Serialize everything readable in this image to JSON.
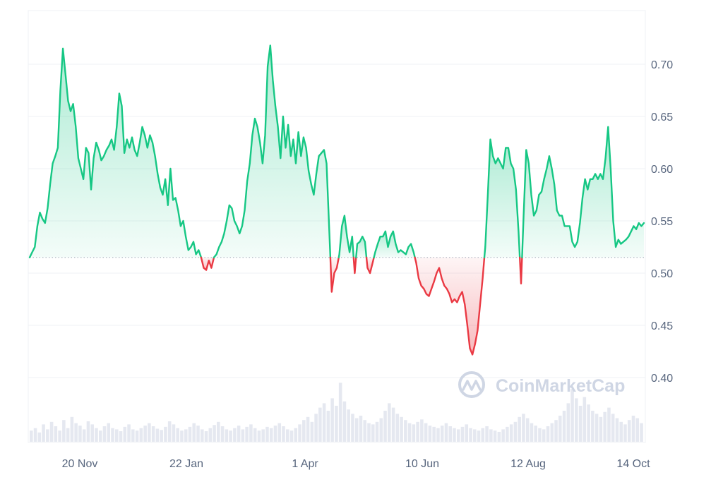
{
  "chart_data": {
    "type": "area",
    "title": "",
    "xlabel": "",
    "ylabel": "",
    "baseline": 0.515,
    "ylim": [
      0.35,
      0.75
    ],
    "x_ticks": [
      "20 Nov",
      "22 Jan",
      "1 Apr",
      "10 Jun",
      "12 Aug",
      "14 Oct"
    ],
    "y_ticks": [
      "0.70",
      "0.65",
      "0.60",
      "0.55",
      "0.50",
      "0.45",
      "0.40"
    ],
    "grid": true,
    "colors": {
      "up": "#16c784",
      "down": "#ea3943",
      "grid": "#eff2f5",
      "baseline": "#aab1bd",
      "volume": "#cfd6e4"
    },
    "series": [
      {
        "values": [
          0.515,
          0.52,
          0.525,
          0.545,
          0.558,
          0.552,
          0.548,
          0.562,
          0.585,
          0.605,
          0.612,
          0.62,
          0.675,
          0.715,
          0.69,
          0.665,
          0.655,
          0.662,
          0.64,
          0.61,
          0.6,
          0.59,
          0.62,
          0.615,
          0.58,
          0.61,
          0.625,
          0.618,
          0.608,
          0.612,
          0.618,
          0.622,
          0.628,
          0.618,
          0.64,
          0.672,
          0.66,
          0.615,
          0.628,
          0.62,
          0.63,
          0.618,
          0.612,
          0.625,
          0.64,
          0.632,
          0.62,
          0.632,
          0.625,
          0.612,
          0.595,
          0.582,
          0.575,
          0.59,
          0.565,
          0.6,
          0.57,
          0.572,
          0.56,
          0.545,
          0.55,
          0.535,
          0.522,
          0.525,
          0.53,
          0.518,
          0.522,
          0.515,
          0.505,
          0.503,
          0.512,
          0.505,
          0.515,
          0.518,
          0.525,
          0.53,
          0.538,
          0.55,
          0.565,
          0.562,
          0.55,
          0.545,
          0.538,
          0.545,
          0.56,
          0.588,
          0.605,
          0.632,
          0.648,
          0.64,
          0.625,
          0.605,
          0.632,
          0.698,
          0.718,
          0.685,
          0.66,
          0.64,
          0.61,
          0.65,
          0.62,
          0.642,
          0.612,
          0.628,
          0.605,
          0.635,
          0.612,
          0.63,
          0.62,
          0.598,
          0.585,
          0.575,
          0.595,
          0.612,
          0.615,
          0.618,
          0.605,
          0.545,
          0.482,
          0.5,
          0.505,
          0.518,
          0.545,
          0.555,
          0.535,
          0.52,
          0.535,
          0.5,
          0.528,
          0.53,
          0.535,
          0.53,
          0.505,
          0.5,
          0.51,
          0.52,
          0.528,
          0.535,
          0.535,
          0.54,
          0.525,
          0.535,
          0.54,
          0.528,
          0.52,
          0.522,
          0.52,
          0.518,
          0.525,
          0.528,
          0.52,
          0.51,
          0.495,
          0.488,
          0.485,
          0.48,
          0.478,
          0.485,
          0.492,
          0.5,
          0.505,
          0.495,
          0.488,
          0.485,
          0.48,
          0.472,
          0.475,
          0.472,
          0.478,
          0.482,
          0.47,
          0.45,
          0.428,
          0.422,
          0.432,
          0.445,
          0.47,
          0.495,
          0.525,
          0.575,
          0.628,
          0.612,
          0.605,
          0.61,
          0.605,
          0.6,
          0.62,
          0.62,
          0.605,
          0.6,
          0.58,
          0.54,
          0.49,
          0.555,
          0.618,
          0.605,
          0.575,
          0.555,
          0.56,
          0.575,
          0.578,
          0.59,
          0.6,
          0.612,
          0.6,
          0.585,
          0.56,
          0.555,
          0.555,
          0.545,
          0.545,
          0.545,
          0.53,
          0.525,
          0.53,
          0.548,
          0.572,
          0.59,
          0.58,
          0.59,
          0.59,
          0.595,
          0.59,
          0.595,
          0.59,
          0.61,
          0.64,
          0.6,
          0.55,
          0.525,
          0.532,
          0.528,
          0.53,
          0.532,
          0.535,
          0.54,
          0.545,
          0.542,
          0.548,
          0.545,
          0.548
        ]
      }
    ],
    "volume": [
      0.18,
      0.22,
      0.15,
      0.28,
      0.2,
      0.32,
      0.25,
      0.18,
      0.35,
      0.22,
      0.4,
      0.3,
      0.26,
      0.2,
      0.33,
      0.28,
      0.22,
      0.18,
      0.25,
      0.3,
      0.22,
      0.2,
      0.17,
      0.24,
      0.28,
      0.2,
      0.18,
      0.22,
      0.26,
      0.3,
      0.25,
      0.21,
      0.19,
      0.24,
      0.33,
      0.28,
      0.22,
      0.18,
      0.2,
      0.24,
      0.3,
      0.26,
      0.2,
      0.17,
      0.22,
      0.27,
      0.32,
      0.25,
      0.2,
      0.18,
      0.22,
      0.26,
      0.2,
      0.24,
      0.28,
      0.22,
      0.18,
      0.2,
      0.24,
      0.22,
      0.26,
      0.3,
      0.25,
      0.2,
      0.18,
      0.22,
      0.28,
      0.35,
      0.4,
      0.32,
      0.45,
      0.55,
      0.62,
      0.5,
      0.7,
      0.58,
      0.95,
      0.65,
      0.52,
      0.45,
      0.38,
      0.42,
      0.35,
      0.3,
      0.28,
      0.32,
      0.38,
      0.5,
      0.62,
      0.55,
      0.45,
      0.4,
      0.35,
      0.3,
      0.28,
      0.32,
      0.36,
      0.3,
      0.26,
      0.24,
      0.22,
      0.26,
      0.3,
      0.25,
      0.22,
      0.2,
      0.24,
      0.28,
      0.22,
      0.2,
      0.18,
      0.22,
      0.25,
      0.2,
      0.18,
      0.16,
      0.2,
      0.24,
      0.28,
      0.32,
      0.4,
      0.45,
      0.38,
      0.3,
      0.26,
      0.22,
      0.2,
      0.25,
      0.3,
      0.35,
      0.42,
      0.5,
      0.62,
      0.85,
      0.7,
      0.58,
      0.72,
      0.6,
      0.5,
      0.45,
      0.4,
      0.48,
      0.55,
      0.45,
      0.38,
      0.32,
      0.28,
      0.35,
      0.42,
      0.38,
      0.3
    ]
  }
}
